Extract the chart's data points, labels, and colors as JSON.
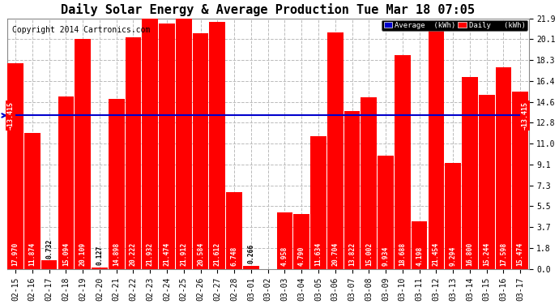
{
  "title": "Daily Solar Energy & Average Production Tue Mar 18 07:05",
  "copyright": "Copyright 2014 Cartronics.com",
  "categories": [
    "02-15",
    "02-16",
    "02-17",
    "02-18",
    "02-19",
    "02-20",
    "02-21",
    "02-22",
    "02-23",
    "02-24",
    "02-25",
    "02-26",
    "02-27",
    "02-28",
    "03-01",
    "03-02",
    "03-03",
    "03-04",
    "03-05",
    "03-06",
    "03-07",
    "03-08",
    "03-09",
    "03-10",
    "03-11",
    "03-12",
    "03-13",
    "03-14",
    "03-15",
    "03-16",
    "03-17"
  ],
  "values": [
    17.97,
    11.874,
    0.732,
    15.094,
    20.109,
    0.127,
    14.898,
    20.222,
    21.932,
    21.474,
    21.912,
    20.584,
    21.612,
    6.748,
    0.266,
    0.0,
    4.958,
    4.79,
    11.634,
    20.704,
    13.822,
    15.002,
    9.934,
    18.688,
    4.198,
    21.454,
    9.294,
    16.8,
    15.244,
    17.598,
    15.474
  ],
  "average_line": 13.415,
  "average_label": "13.415",
  "bar_color": "#ff0000",
  "average_line_color": "#0000cc",
  "background_color": "#ffffff",
  "plot_bg_color": "#ffffff",
  "grid_color": "#bbbbbb",
  "ylim": [
    0.0,
    21.9
  ],
  "yticks": [
    0.0,
    1.8,
    3.7,
    5.5,
    7.3,
    9.1,
    11.0,
    12.8,
    14.6,
    16.4,
    18.3,
    20.1,
    21.9
  ],
  "legend_average_color": "#0000cc",
  "legend_daily_color": "#ff0000",
  "title_fontsize": 11,
  "tick_fontsize": 7,
  "value_fontsize": 5.8,
  "copyright_fontsize": 7
}
